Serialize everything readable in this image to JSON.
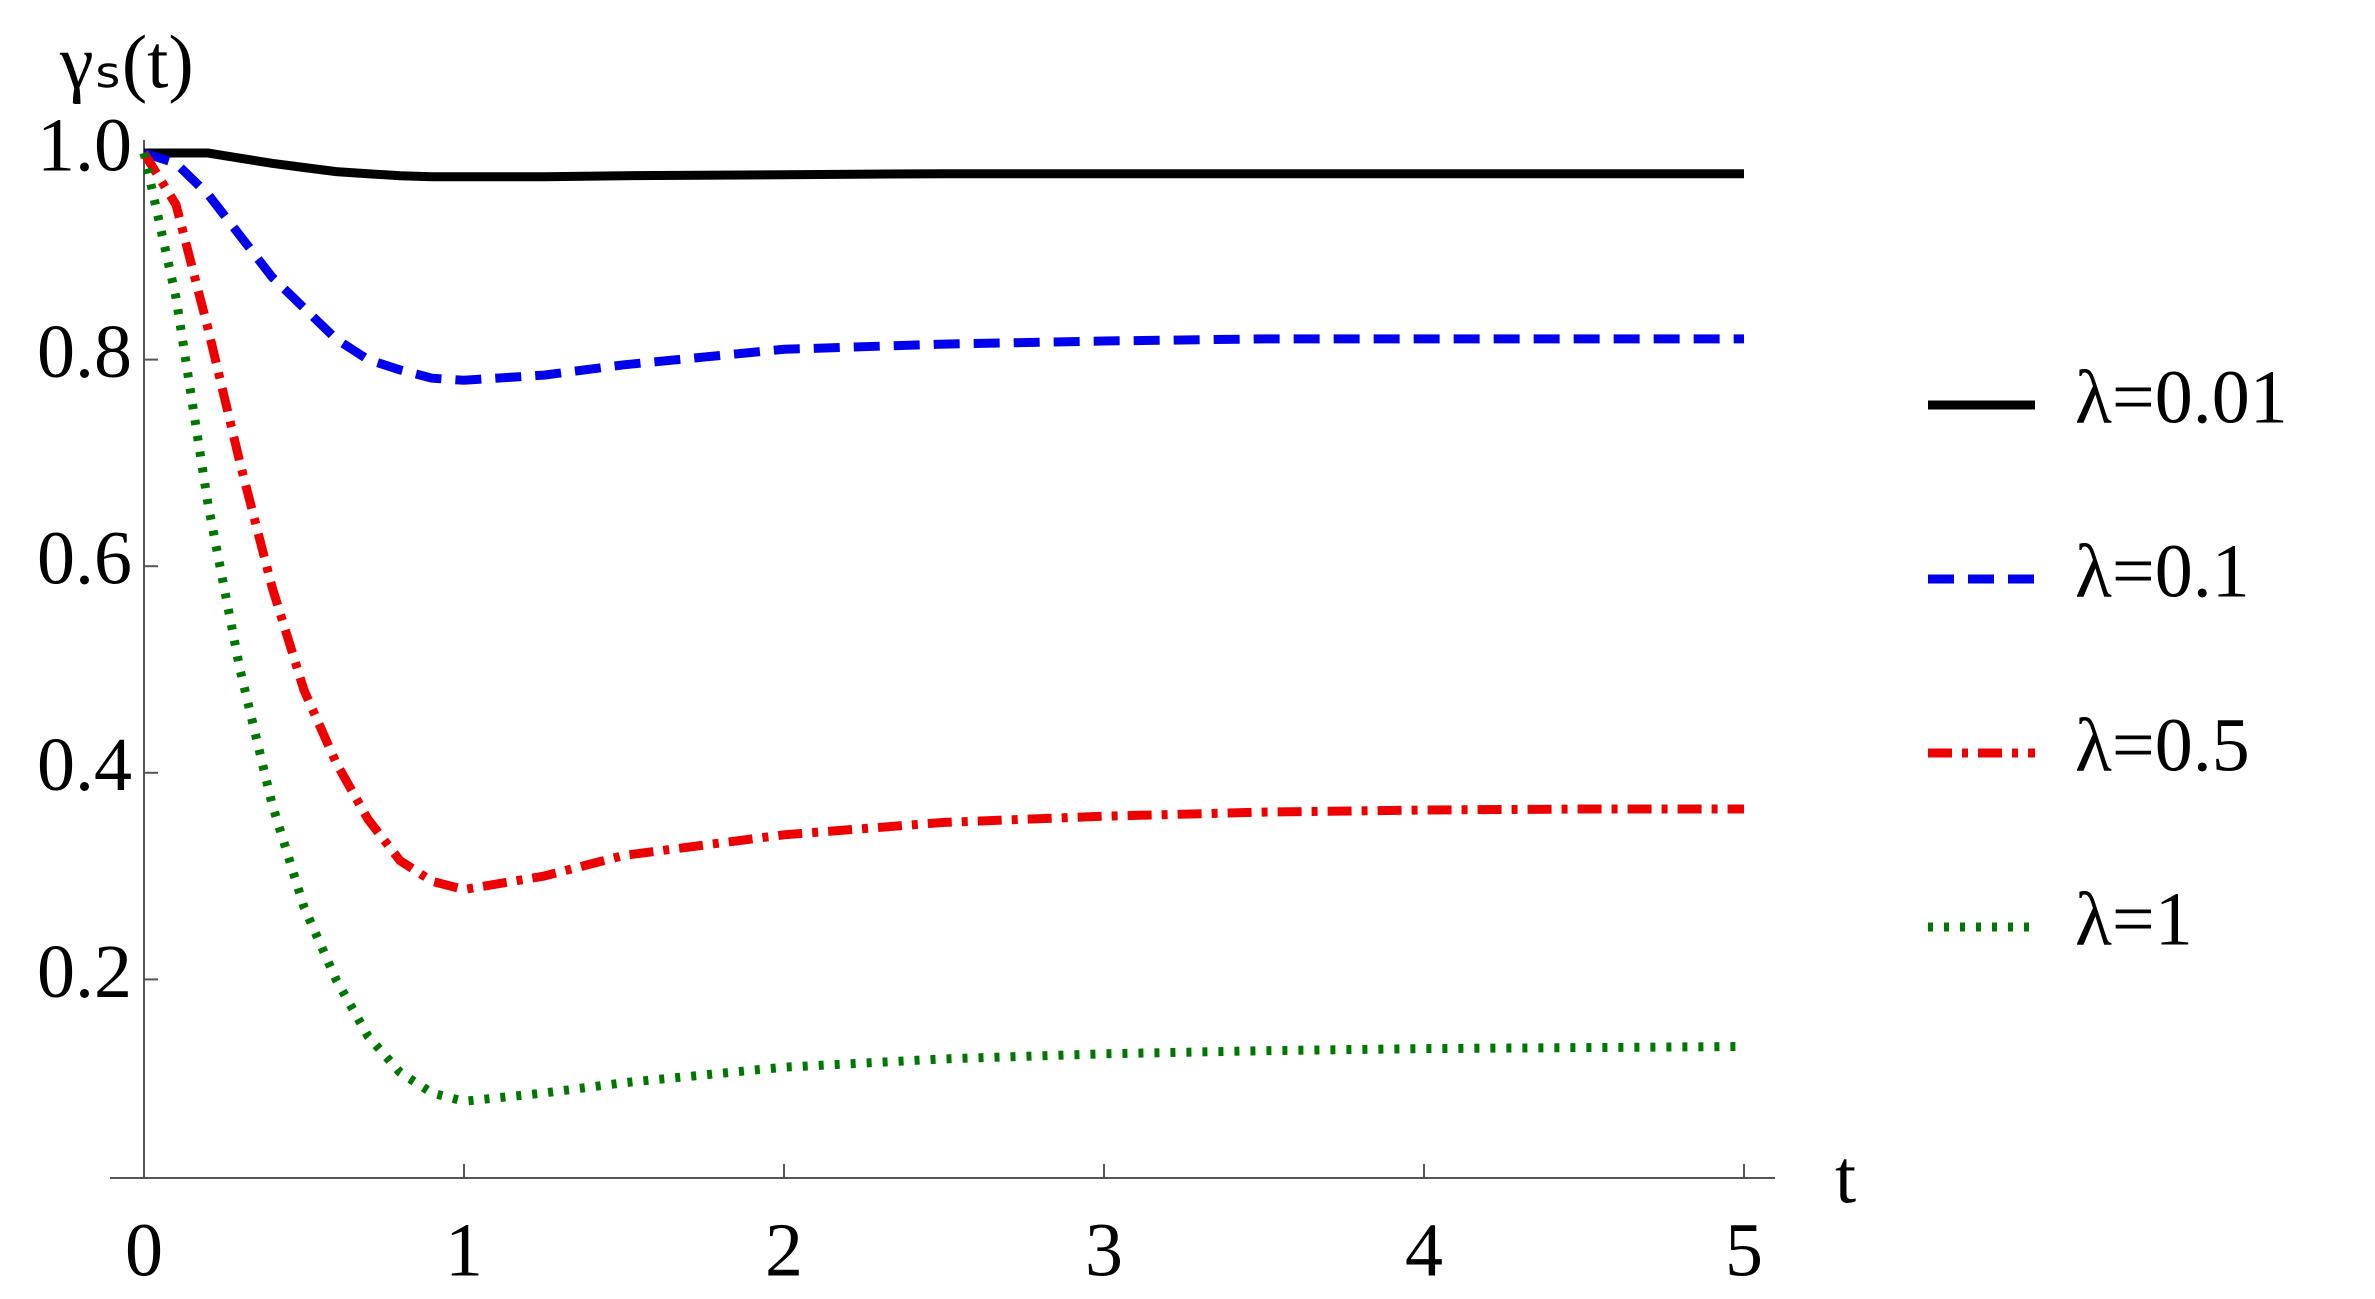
{
  "chart_data": {
    "type": "line",
    "y_label": "γₛ(t)",
    "x_label": "t",
    "x": [
      0,
      0.1,
      0.2,
      0.3,
      0.4,
      0.5,
      0.6,
      0.7,
      0.8,
      0.9,
      1,
      1.25,
      1.5,
      2,
      2.5,
      3,
      3.5,
      4,
      4.5,
      5
    ],
    "series": [
      {
        "name": "λ=0.01",
        "color": "#000000",
        "dash": "solid",
        "values": [
          1,
          1,
          1,
          0.995,
          0.99,
          0.986,
          0.982,
          0.98,
          0.978,
          0.977,
          0.977,
          0.977,
          0.978,
          0.979,
          0.98,
          0.98,
          0.98,
          0.98,
          0.98,
          0.98
        ]
      },
      {
        "name": "λ=0.1",
        "color": "#0000ee",
        "dash": "dashed",
        "values": [
          1,
          0.99,
          0.96,
          0.92,
          0.88,
          0.85,
          0.82,
          0.8,
          0.79,
          0.782,
          0.78,
          0.785,
          0.795,
          0.81,
          0.815,
          0.818,
          0.82,
          0.82,
          0.82,
          0.82
        ]
      },
      {
        "name": "λ=0.5",
        "color": "#ee0000",
        "dash": "dashdot",
        "values": [
          1,
          0.95,
          0.83,
          0.7,
          0.58,
          0.48,
          0.41,
          0.355,
          0.315,
          0.295,
          0.287,
          0.3,
          0.32,
          0.34,
          0.352,
          0.358,
          0.362,
          0.364,
          0.365,
          0.365
        ]
      },
      {
        "name": "λ=1",
        "color": "#007700",
        "dash": "dotted",
        "values": [
          1,
          0.86,
          0.66,
          0.5,
          0.37,
          0.27,
          0.2,
          0.145,
          0.11,
          0.09,
          0.082,
          0.09,
          0.1,
          0.115,
          0.123,
          0.128,
          0.131,
          0.133,
          0.134,
          0.135
        ]
      }
    ],
    "xlim": [
      0,
      5
    ],
    "ylim": [
      0,
      1
    ],
    "xticks": [
      0,
      1,
      2,
      3,
      4,
      5
    ],
    "yticks": [
      0.2,
      0.4,
      0.6,
      0.8,
      {
        "value": 1,
        "label": "1.0"
      }
    ],
    "legend": "right"
  }
}
